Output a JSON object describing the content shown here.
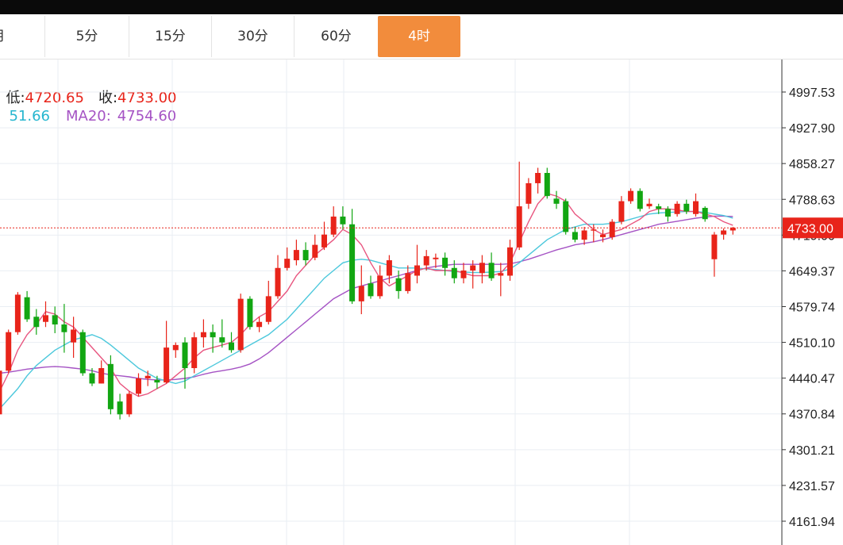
{
  "tabs": [
    "月",
    "5分",
    "15分",
    "30分",
    "60分",
    "4时"
  ],
  "active_tab": 5,
  "info": {
    "low_label": "低:",
    "low_value": "4720.65",
    "close_label": "收:",
    "close_value": "4733.00",
    "ma10_value": "51.66",
    "ma20_label": "MA20:",
    "ma20_value": "4754.60"
  },
  "colors": {
    "up": "#e8241a",
    "down": "#12a612",
    "ma5": "#e8557f",
    "ma10": "#4cc8dc",
    "ma20": "#a553c4",
    "active_tab": "#f28c3c",
    "price_line": "#e8241a"
  },
  "chart_data": {
    "type": "candlestick",
    "y_ticks": [
      "4997.53",
      "4927.90",
      "4858.27",
      "4788.63",
      "4719.00",
      "4649.37",
      "4579.74",
      "4510.10",
      "4440.47",
      "4370.84",
      "4301.21",
      "4231.57",
      "4161.94"
    ],
    "current_price": "4733.00",
    "candles": [
      [
        4370,
        4455,
        4362,
        4458
      ],
      [
        4455,
        4530,
        4450,
        4535
      ],
      [
        4530,
        4603,
        4525,
        4608
      ],
      [
        4598,
        4555,
        4550,
        4610
      ],
      [
        4560,
        4540,
        4525,
        4575
      ],
      [
        4550,
        4563,
        4540,
        4590
      ],
      [
        4563,
        4545,
        4528,
        4580
      ],
      [
        4545,
        4530,
        4490,
        4585
      ],
      [
        4510,
        4535,
        4480,
        4560
      ],
      [
        4530,
        4450,
        4445,
        4535
      ],
      [
        4450,
        4430,
        4425,
        4460
      ],
      [
        4430,
        4460,
        4430,
        4475
      ],
      [
        4468,
        4380,
        4370,
        4485
      ],
      [
        4395,
        4370,
        4360,
        4410
      ],
      [
        4370,
        4410,
        4365,
        4415
      ],
      [
        4410,
        4440,
        4405,
        4450
      ],
      [
        4440,
        4445,
        4425,
        4455
      ],
      [
        4437,
        4432,
        4420,
        4445
      ],
      [
        4432,
        4500,
        4430,
        4552
      ],
      [
        4495,
        4505,
        4480,
        4510
      ],
      [
        4510,
        4460,
        4420,
        4520
      ],
      [
        4460,
        4520,
        4450,
        4530
      ],
      [
        4520,
        4530,
        4500,
        4555
      ],
      [
        4530,
        4520,
        4490,
        4545
      ],
      [
        4520,
        4510,
        4500,
        4555
      ],
      [
        4510,
        4495,
        4490,
        4530
      ],
      [
        4495,
        4595,
        4490,
        4605
      ],
      [
        4595,
        4540,
        4535,
        4600
      ],
      [
        4540,
        4550,
        4530,
        4560
      ],
      [
        4550,
        4600,
        4545,
        4630
      ],
      [
        4600,
        4655,
        4595,
        4680
      ],
      [
        4655,
        4673,
        4650,
        4695
      ],
      [
        4670,
        4690,
        4660,
        4710
      ],
      [
        4690,
        4670,
        4660,
        4705
      ],
      [
        4675,
        4700,
        4670,
        4720
      ],
      [
        4695,
        4720,
        4690,
        4745
      ],
      [
        4720,
        4755,
        4715,
        4775
      ],
      [
        4755,
        4740,
        4730,
        4775
      ],
      [
        4740,
        4590,
        4585,
        4770
      ],
      [
        4590,
        4620,
        4565,
        4660
      ],
      [
        4625,
        4600,
        4595,
        4640
      ],
      [
        4600,
        4640,
        4595,
        4660
      ],
      [
        4640,
        4670,
        4625,
        4680
      ],
      [
        4635,
        4610,
        4595,
        4650
      ],
      [
        4610,
        4645,
        4605,
        4660
      ],
      [
        4640,
        4660,
        4625,
        4700
      ],
      [
        4660,
        4678,
        4650,
        4690
      ],
      [
        4672,
        4675,
        4655,
        4683
      ],
      [
        4675,
        4655,
        4640,
        4685
      ],
      [
        4655,
        4635,
        4625,
        4670
      ],
      [
        4635,
        4650,
        4625,
        4665
      ],
      [
        4650,
        4660,
        4615,
        4670
      ],
      [
        4645,
        4665,
        4625,
        4680
      ],
      [
        4665,
        4635,
        4630,
        4685
      ],
      [
        4640,
        4645,
        4600,
        4665
      ],
      [
        4640,
        4695,
        4630,
        4710
      ],
      [
        4695,
        4775,
        4690,
        4862
      ],
      [
        4780,
        4820,
        4770,
        4830
      ],
      [
        4820,
        4840,
        4800,
        4850
      ],
      [
        4840,
        4795,
        4790,
        4850
      ],
      [
        4790,
        4780,
        4770,
        4805
      ],
      [
        4785,
        4725,
        4720,
        4790
      ],
      [
        4725,
        4710,
        4705,
        4735
      ],
      [
        4710,
        4728,
        4700,
        4735
      ],
      [
        4728,
        4730,
        4705,
        4740
      ],
      [
        4715,
        4720,
        4705,
        4730
      ],
      [
        4715,
        4745,
        4710,
        4750
      ],
      [
        4745,
        4785,
        4740,
        4795
      ],
      [
        4785,
        4805,
        4780,
        4810
      ],
      [
        4805,
        4770,
        4765,
        4810
      ],
      [
        4775,
        4780,
        4770,
        4790
      ],
      [
        4775,
        4770,
        4760,
        4780
      ],
      [
        4770,
        4755,
        4745,
        4775
      ],
      [
        4760,
        4780,
        4755,
        4785
      ],
      [
        4780,
        4765,
        4760,
        4788
      ],
      [
        4760,
        4785,
        4755,
        4800
      ],
      [
        4772,
        4750,
        4745,
        4775
      ],
      [
        4672,
        4720,
        4638,
        4725
      ],
      [
        4720,
        4728,
        4710,
        4732
      ],
      [
        4728,
        4733,
        4720,
        4735
      ]
    ],
    "ma5": [
      4413,
      4450,
      4495,
      4525,
      4545,
      4570,
      4565,
      4550,
      4540,
      4520,
      4500,
      4480,
      4460,
      4430,
      4415,
      4405,
      4410,
      4420,
      4430,
      4445,
      4460,
      4480,
      4495,
      4500,
      4505,
      4510,
      4525,
      4545,
      4560,
      4570,
      4590,
      4610,
      4640,
      4660,
      4680,
      4695,
      4710,
      4730,
      4720,
      4700,
      4665,
      4635,
      4620,
      4630,
      4640,
      4650,
      4655,
      4650,
      4650,
      4650,
      4645,
      4640,
      4640,
      4640,
      4645,
      4665,
      4705,
      4745,
      4780,
      4800,
      4795,
      4785,
      4760,
      4745,
      4730,
      4720,
      4725,
      4730,
      4740,
      4750,
      4765,
      4770,
      4770,
      4768,
      4765,
      4765,
      4760,
      4755,
      4745,
      4738
    ],
    "ma10": [
      4380,
      4400,
      4420,
      4445,
      4465,
      4480,
      4495,
      4505,
      4515,
      4520,
      4525,
      4518,
      4505,
      4490,
      4475,
      4460,
      4450,
      4440,
      4435,
      4430,
      4435,
      4445,
      4455,
      4465,
      4475,
      4485,
      4495,
      4505,
      4515,
      4525,
      4540,
      4555,
      4575,
      4595,
      4615,
      4635,
      4650,
      4665,
      4670,
      4672,
      4670,
      4665,
      4660,
      4655,
      4655,
      4655,
      4653,
      4652,
      4650,
      4648,
      4647,
      4646,
      4646,
      4647,
      4648,
      4653,
      4665,
      4680,
      4695,
      4710,
      4720,
      4730,
      4735,
      4740,
      4740,
      4740,
      4742,
      4745,
      4750,
      4755,
      4760,
      4762,
      4763,
      4764,
      4765,
      4765,
      4763,
      4760,
      4757,
      4752
    ],
    "ma20": [
      4450,
      4452,
      4455,
      4458,
      4460,
      4462,
      4463,
      4462,
      4460,
      4458,
      4455,
      4450,
      4447,
      4445,
      4443,
      4440,
      4438,
      4437,
      4437,
      4438,
      4440,
      4443,
      4448,
      4452,
      4455,
      4458,
      4462,
      4468,
      4478,
      4490,
      4505,
      4520,
      4535,
      4550,
      4565,
      4580,
      4595,
      4605,
      4615,
      4620,
      4625,
      4630,
      4635,
      4640,
      4645,
      4650,
      4655,
      4658,
      4660,
      4662,
      4662,
      4662,
      4662,
      4662,
      4662,
      4663,
      4667,
      4672,
      4678,
      4684,
      4690,
      4695,
      4700,
      4703,
      4706,
      4710,
      4715,
      4720,
      4725,
      4730,
      4735,
      4740,
      4743,
      4746,
      4749,
      4752,
      4754,
      4756,
      4756,
      4755
    ]
  }
}
